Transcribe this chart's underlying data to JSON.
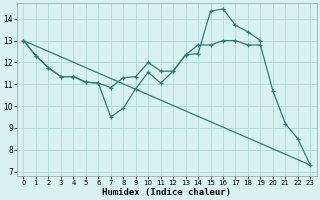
{
  "xlabel": "Humidex (Indice chaleur)",
  "background_color": "#d8f2f2",
  "grid_color": "#b8dada",
  "line_color": "#2e7d72",
  "xlim": [
    -0.5,
    23.5
  ],
  "ylim": [
    6.8,
    14.7
  ],
  "yticks": [
    7,
    8,
    9,
    10,
    11,
    12,
    13,
    14
  ],
  "xticks": [
    0,
    1,
    2,
    3,
    4,
    5,
    6,
    7,
    8,
    9,
    10,
    11,
    12,
    13,
    14,
    15,
    16,
    17,
    18,
    19,
    20,
    21,
    22,
    23
  ],
  "line1_x": [
    0,
    1,
    2,
    3,
    4,
    5,
    6,
    7,
    8,
    9,
    10,
    11,
    12,
    13,
    14,
    15,
    16,
    17,
    18,
    19
  ],
  "line1_y": [
    13.0,
    12.3,
    11.75,
    11.35,
    11.35,
    11.1,
    11.05,
    9.5,
    9.9,
    10.8,
    11.55,
    11.05,
    11.6,
    12.35,
    12.4,
    14.35,
    14.45,
    13.7,
    13.4,
    13.0
  ],
  "line2_x": [
    0,
    1,
    2,
    3,
    4,
    5,
    6,
    7,
    8,
    9,
    10,
    11,
    12,
    13,
    14,
    15,
    16,
    17,
    18,
    19,
    20,
    21,
    22,
    23
  ],
  "line2_y": [
    13.0,
    12.3,
    11.75,
    11.35,
    11.35,
    11.1,
    11.05,
    10.85,
    11.3,
    11.35,
    12.0,
    11.6,
    11.6,
    12.35,
    12.8,
    12.8,
    13.0,
    13.0,
    12.8,
    12.8,
    10.7,
    9.2,
    8.5,
    7.3
  ],
  "line3_x": [
    0,
    1,
    2,
    3,
    4,
    5,
    6,
    7,
    8,
    9,
    10,
    11,
    12,
    13,
    14,
    15,
    16,
    17,
    18,
    19,
    20,
    21,
    22,
    23
  ],
  "line3_y": [
    13.0,
    12.3,
    11.75,
    11.35,
    11.35,
    11.35,
    11.35,
    11.35,
    11.35,
    11.35,
    12.0,
    11.6,
    11.6,
    12.35,
    12.8,
    12.8,
    13.0,
    13.0,
    12.8,
    12.8,
    10.7,
    9.2,
    8.5,
    7.3
  ],
  "line4_x": [
    0,
    23
  ],
  "line4_y": [
    13.0,
    7.3
  ]
}
